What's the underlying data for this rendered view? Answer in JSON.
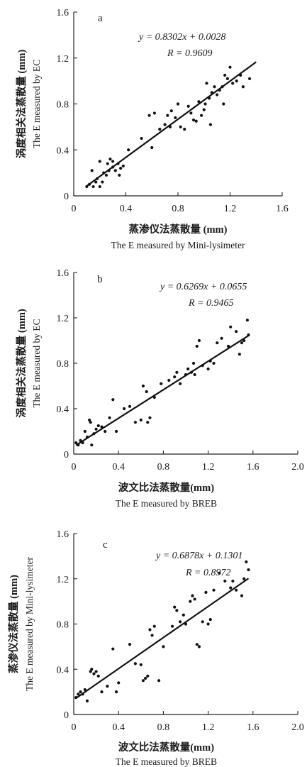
{
  "chart_data": [
    {
      "type": "scatter",
      "panel_label": "a",
      "equation": "y = 0.8302x + 0.0028",
      "r_text": "R = 0.9609",
      "fit": {
        "slope": 0.8302,
        "intercept": 0.0028,
        "x_range": [
          0.1,
          1.4
        ]
      },
      "xlabel_cn": "蒸渗仪法蒸散量 (mm)",
      "xlabel_en": "The E measured by Mini-lysimeter",
      "ylabel_cn": "涡度相关法蒸散量 (mm)",
      "ylabel_en": "The E measured by EC",
      "xlim": [
        0,
        1.6
      ],
      "ylim": [
        0,
        1.6
      ],
      "xticks": [
        "0",
        "0.4",
        "0.8",
        "1.2",
        "1.6"
      ],
      "yticks": [
        "0",
        "0.4",
        "0.8",
        "1.2",
        "1.6"
      ],
      "x": [
        0.1,
        0.12,
        0.14,
        0.15,
        0.17,
        0.18,
        0.2,
        0.2,
        0.22,
        0.23,
        0.25,
        0.26,
        0.27,
        0.28,
        0.3,
        0.3,
        0.32,
        0.34,
        0.35,
        0.36,
        0.38,
        0.42,
        0.52,
        0.58,
        0.6,
        0.62,
        0.66,
        0.7,
        0.72,
        0.74,
        0.75,
        0.78,
        0.8,
        0.82,
        0.85,
        0.88,
        0.9,
        0.92,
        0.94,
        0.96,
        0.98,
        1.0,
        1.01,
        1.02,
        1.04,
        1.05,
        1.06,
        1.08,
        1.1,
        1.12,
        1.14,
        1.15,
        1.16,
        1.18,
        1.2,
        1.22,
        1.25,
        1.28,
        1.3,
        1.35
      ],
      "y": [
        0.08,
        0.1,
        0.22,
        0.08,
        0.12,
        0.15,
        0.3,
        0.08,
        0.12,
        0.2,
        0.18,
        0.28,
        0.22,
        0.32,
        0.25,
        0.3,
        0.22,
        0.28,
        0.18,
        0.24,
        0.26,
        0.4,
        0.5,
        0.7,
        0.42,
        0.72,
        0.58,
        0.62,
        0.7,
        0.6,
        0.74,
        0.68,
        0.8,
        0.6,
        0.58,
        0.78,
        0.72,
        0.66,
        0.65,
        0.82,
        0.7,
        0.75,
        0.8,
        0.98,
        0.85,
        0.62,
        0.9,
        0.95,
        0.88,
        0.92,
        0.95,
        0.8,
        1.05,
        1.02,
        1.12,
        0.98,
        1.0,
        1.05,
        0.95,
        1.02
      ]
    },
    {
      "type": "scatter",
      "panel_label": "b",
      "equation": "y = 0.6269x + 0.0655",
      "r_text": "R = 0.9465",
      "fit": {
        "slope": 0.6269,
        "intercept": 0.0655,
        "x_range": [
          0.02,
          1.56
        ]
      },
      "xlabel_cn": "波文比法蒸散量(mm)",
      "xlabel_en": "The E measured by BREB",
      "ylabel_cn": "涡度相关法蒸散量 (mm)",
      "ylabel_en": "The E measured by EC",
      "xlim": [
        0,
        2.0
      ],
      "ylim": [
        0,
        1.6
      ],
      "xticks": [
        "0",
        "0.4",
        "0.8",
        "1.2",
        "1.6",
        "2.0"
      ],
      "yticks": [
        "0",
        "0.4",
        "0.8",
        "1.2",
        "1.6"
      ],
      "x": [
        0.02,
        0.04,
        0.06,
        0.08,
        0.1,
        0.12,
        0.14,
        0.15,
        0.16,
        0.18,
        0.2,
        0.22,
        0.25,
        0.28,
        0.32,
        0.35,
        0.38,
        0.45,
        0.5,
        0.55,
        0.6,
        0.62,
        0.65,
        0.66,
        0.68,
        0.72,
        0.78,
        0.85,
        0.9,
        0.92,
        0.95,
        1.0,
        1.02,
        1.05,
        1.07,
        1.08,
        1.1,
        1.12,
        1.15,
        1.2,
        1.22,
        1.25,
        1.28,
        1.32,
        1.38,
        1.4,
        1.45,
        1.48,
        1.5,
        1.52,
        1.55,
        1.56
      ],
      "y": [
        0.1,
        0.08,
        0.12,
        0.1,
        0.2,
        0.15,
        0.3,
        0.28,
        0.08,
        0.18,
        0.22,
        0.25,
        0.24,
        0.2,
        0.32,
        0.48,
        0.2,
        0.4,
        0.42,
        0.28,
        0.3,
        0.6,
        0.55,
        0.28,
        0.32,
        0.5,
        0.62,
        0.65,
        0.68,
        0.72,
        0.62,
        0.7,
        0.75,
        0.72,
        0.8,
        0.7,
        0.95,
        1.0,
        0.78,
        0.75,
        0.82,
        0.8,
        0.98,
        1.02,
        0.95,
        1.12,
        1.08,
        0.88,
        0.98,
        1.0,
        1.18,
        1.05
      ]
    },
    {
      "type": "scatter",
      "panel_label": "c",
      "equation": "y = 0.6878x + 0.1301",
      "r_text": "R = 0.8972",
      "fit": {
        "slope": 0.6878,
        "intercept": 0.1301,
        "x_range": [
          0.02,
          1.56
        ]
      },
      "xlabel_cn": "波文比法蒸散量(mm)",
      "xlabel_en": "The E measured by BREB",
      "ylabel_cn": "蒸渗仪法蒸散量 (mm)",
      "ylabel_en": "The E measured by Mini-lysimeter",
      "xlim": [
        0,
        2.0
      ],
      "ylim": [
        0,
        1.6
      ],
      "xticks": [
        "0",
        "0.4",
        "0.8",
        "1.2",
        "1.6",
        "2.0"
      ],
      "yticks": [
        "0",
        "0.4",
        "0.8",
        "1.2",
        "1.6"
      ],
      "x": [
        0.02,
        0.04,
        0.06,
        0.08,
        0.1,
        0.12,
        0.15,
        0.16,
        0.18,
        0.2,
        0.22,
        0.25,
        0.3,
        0.35,
        0.38,
        0.4,
        0.5,
        0.55,
        0.6,
        0.62,
        0.64,
        0.66,
        0.68,
        0.7,
        0.72,
        0.76,
        0.8,
        0.88,
        0.9,
        0.92,
        0.95,
        0.98,
        1.0,
        1.04,
        1.06,
        1.08,
        1.1,
        1.12,
        1.15,
        1.18,
        1.2,
        1.22,
        1.25,
        1.3,
        1.35,
        1.4,
        1.42,
        1.45,
        1.5,
        1.52,
        1.54,
        1.56
      ],
      "y": [
        0.15,
        0.18,
        0.2,
        0.18,
        0.22,
        0.12,
        0.38,
        0.4,
        0.36,
        0.38,
        0.34,
        0.2,
        0.25,
        0.58,
        0.2,
        0.28,
        0.62,
        0.45,
        0.44,
        0.3,
        0.32,
        0.34,
        0.75,
        0.7,
        0.78,
        0.3,
        0.6,
        0.78,
        0.95,
        0.92,
        0.82,
        0.88,
        0.8,
        1.0,
        1.05,
        1.02,
        0.62,
        0.6,
        0.82,
        1.08,
        0.8,
        0.84,
        1.1,
        1.25,
        1.18,
        1.12,
        1.18,
        1.1,
        1.05,
        1.2,
        1.35,
        1.28
      ]
    }
  ]
}
